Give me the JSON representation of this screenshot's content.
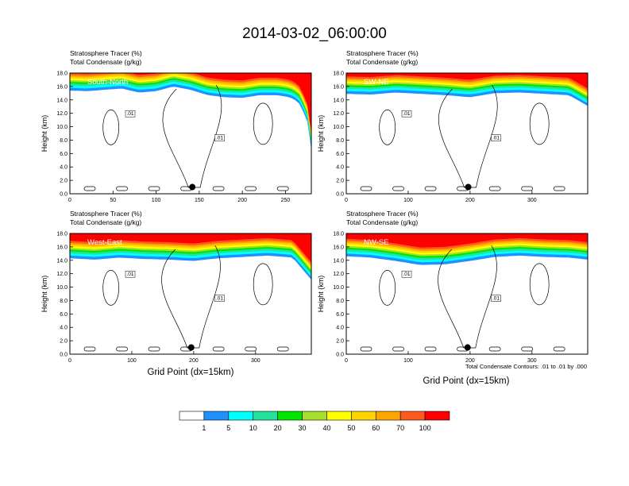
{
  "title": "2014-03-02_06:00:00",
  "panel_header": {
    "line1": "Stratosphere Tracer   (%)",
    "line2": "Total Condensate   (g/kg)"
  },
  "ylabel": "Height (km)",
  "xlabel": "Grid Point (dx=15km)",
  "contour_note": "Total Condensate Contours: .01 to .01 by .000",
  "contour_label": ".01",
  "colors": {
    "levels": [
      "#ffffff",
      "#1e90ff",
      "#00ffff",
      "#22e39d",
      "#00e600",
      "#a6e02a",
      "#ffff00",
      "#ffd400",
      "#ffa500",
      "#ff5a1e",
      "#ff0000"
    ]
  },
  "colorbar": {
    "labels": [
      "1",
      "5",
      "10",
      "20",
      "30",
      "40",
      "50",
      "60",
      "70",
      "100"
    ]
  },
  "chart_data": [
    {
      "type": "heatmap",
      "label": "South-North",
      "xlim": [
        0,
        280
      ],
      "xticks": [
        0,
        50,
        100,
        150,
        200,
        250
      ],
      "ylim": [
        0,
        18
      ],
      "yticks": [
        "0.0",
        "2.0",
        "4.0",
        "6.0",
        "8.0",
        "10.0",
        "12.0",
        "14.0",
        "16.0",
        "18.0"
      ],
      "marker": {
        "x": 142,
        "y": 1.0
      },
      "stratosphere_base_km": [
        [
          0,
          16.3
        ],
        [
          20,
          16.2
        ],
        [
          40,
          16.4
        ],
        [
          60,
          16.6
        ],
        [
          80,
          16.0
        ],
        [
          100,
          16.2
        ],
        [
          120,
          16.9
        ],
        [
          140,
          16.4
        ],
        [
          160,
          15.6
        ],
        [
          180,
          15.3
        ],
        [
          200,
          15.2
        ],
        [
          220,
          15.6
        ],
        [
          240,
          15.6
        ],
        [
          255,
          15.3
        ],
        [
          265,
          14.6
        ],
        [
          275,
          12.0
        ],
        [
          280,
          7.5
        ]
      ]
    },
    {
      "type": "heatmap",
      "label": "SW-NE",
      "xlim": [
        0,
        390
      ],
      "xticks": [
        0,
        100,
        200,
        300
      ],
      "ylim": [
        0,
        18
      ],
      "yticks": [
        "0.0",
        "2.0",
        "4.0",
        "6.0",
        "8.0",
        "10.0",
        "12.0",
        "14.0",
        "16.0",
        "18.0"
      ],
      "marker": {
        "x": 197,
        "y": 1.0
      },
      "stratosphere_base_km": [
        [
          0,
          15.8
        ],
        [
          40,
          15.7
        ],
        [
          80,
          16.0
        ],
        [
          120,
          15.8
        ],
        [
          160,
          15.6
        ],
        [
          200,
          15.3
        ],
        [
          240,
          15.9
        ],
        [
          280,
          16.0
        ],
        [
          320,
          15.8
        ],
        [
          360,
          15.6
        ],
        [
          390,
          14.0
        ]
      ]
    },
    {
      "type": "heatmap",
      "label": "West-East",
      "xlim": [
        0,
        390
      ],
      "xticks": [
        0,
        100,
        200,
        300
      ],
      "ylim": [
        0,
        18
      ],
      "yticks": [
        "0.0",
        "2.0",
        "4.0",
        "6.0",
        "8.0",
        "10.0",
        "12.0",
        "14.0",
        "16.0",
        "18.0"
      ],
      "marker": {
        "x": 196,
        "y": 1.0
      },
      "stratosphere_base_km": [
        [
          0,
          15.2
        ],
        [
          40,
          15.0
        ],
        [
          80,
          15.3
        ],
        [
          120,
          15.1
        ],
        [
          160,
          15.0
        ],
        [
          200,
          14.8
        ],
        [
          240,
          15.2
        ],
        [
          280,
          15.4
        ],
        [
          320,
          15.6
        ],
        [
          360,
          15.3
        ],
        [
          390,
          12.0
        ]
      ]
    },
    {
      "type": "heatmap",
      "label": "NW-SE",
      "xlim": [
        0,
        390
      ],
      "xticks": [
        0,
        100,
        200,
        300
      ],
      "ylim": [
        0,
        18
      ],
      "yticks": [
        "0.0",
        "2.0",
        "4.0",
        "6.0",
        "8.0",
        "10.0",
        "12.0",
        "14.0",
        "16.0",
        "18.0"
      ],
      "marker": {
        "x": 196,
        "y": 1.0
      },
      "stratosphere_base_km": [
        [
          0,
          15.5
        ],
        [
          40,
          15.3
        ],
        [
          80,
          14.8
        ],
        [
          120,
          14.2
        ],
        [
          160,
          14.3
        ],
        [
          200,
          14.8
        ],
        [
          240,
          15.4
        ],
        [
          280,
          15.6
        ],
        [
          320,
          15.4
        ],
        [
          360,
          15.3
        ],
        [
          390,
          15.0
        ]
      ]
    }
  ]
}
